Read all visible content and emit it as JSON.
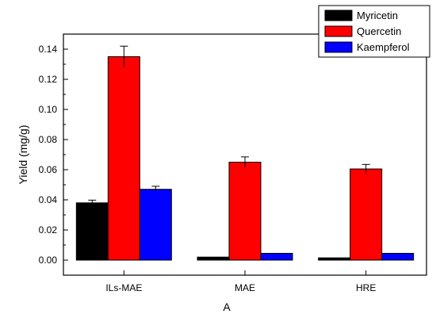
{
  "chart_data": {
    "type": "bar",
    "title": "",
    "xlabel": "A",
    "ylabel": "Yield (mg/g)",
    "ylim": [
      -0.01,
      0.15
    ],
    "yticks": [
      "0.00",
      "0.02",
      "0.04",
      "0.06",
      "0.08",
      "0.10",
      "0.12",
      "0.14"
    ],
    "categories": [
      "ILs-MAE",
      "MAE",
      "HRE"
    ],
    "series": [
      {
        "name": "Myricetin",
        "color": "#000000",
        "values": [
          0.038,
          0.002,
          0.0015
        ],
        "errors": [
          0.0018,
          0,
          0
        ]
      },
      {
        "name": "Quercetin",
        "color": "#ff0000",
        "values": [
          0.135,
          0.065,
          0.0605
        ],
        "errors": [
          0.007,
          0.0035,
          0.003
        ]
      },
      {
        "name": "Kaempferol",
        "color": "#0000ff",
        "values": [
          0.047,
          0.0045,
          0.0045
        ],
        "errors": [
          0.002,
          0,
          0
        ]
      }
    ],
    "grid": false,
    "legend": "top-right"
  }
}
